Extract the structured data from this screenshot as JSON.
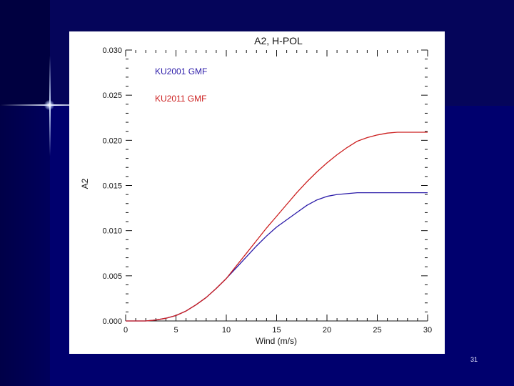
{
  "slide": {
    "number": "31"
  },
  "chart_data": {
    "type": "line",
    "title": "A2, H-POL",
    "xlabel": "Wind (m/s)",
    "ylabel": "A2",
    "xlim": [
      0,
      30
    ],
    "ylim": [
      0,
      0.03
    ],
    "x_ticks": [
      0,
      5,
      10,
      15,
      20,
      25,
      30
    ],
    "x_tick_labels": [
      "0",
      "5",
      "10",
      "15",
      "20",
      "25",
      "30"
    ],
    "y_ticks": [
      0,
      0.005,
      0.01,
      0.015,
      0.02,
      0.025,
      0.03
    ],
    "y_tick_labels": [
      "0.000",
      "0.005",
      "0.010",
      "0.015",
      "0.020",
      "0.025",
      "0.030"
    ],
    "grid": false,
    "legend_position": "top-left",
    "series": [
      {
        "name": "KU2001 GMF",
        "color": "#2a1aa8",
        "x": [
          0,
          2,
          3,
          4,
          5,
          6,
          7,
          8,
          9,
          10,
          11,
          12,
          13,
          14,
          15,
          16,
          17,
          18,
          19,
          20,
          21,
          22,
          23,
          24,
          25,
          26,
          27,
          28,
          29,
          30
        ],
        "y": [
          0,
          0,
          0.0001,
          0.0003,
          0.0006,
          0.0011,
          0.0018,
          0.0026,
          0.0036,
          0.0047,
          0.0059,
          0.0071,
          0.0083,
          0.0094,
          0.0104,
          0.0112,
          0.012,
          0.0128,
          0.0134,
          0.0138,
          0.014,
          0.0141,
          0.0142,
          0.0142,
          0.0142,
          0.0142,
          0.0142,
          0.0142,
          0.0142,
          0.0142
        ]
      },
      {
        "name": "KU2011 GMF",
        "color": "#cc1f1f",
        "x": [
          0,
          2,
          3,
          4,
          5,
          6,
          7,
          8,
          9,
          10,
          11,
          12,
          13,
          14,
          15,
          16,
          17,
          18,
          19,
          20,
          21,
          22,
          23,
          24,
          25,
          26,
          27,
          28,
          29,
          30
        ],
        "y": [
          0,
          0,
          0.0001,
          0.0003,
          0.0006,
          0.0011,
          0.0018,
          0.0026,
          0.0036,
          0.0047,
          0.0061,
          0.0075,
          0.0089,
          0.0103,
          0.0116,
          0.0129,
          0.0142,
          0.0154,
          0.0165,
          0.0175,
          0.0184,
          0.0192,
          0.0199,
          0.0203,
          0.0206,
          0.0208,
          0.0209,
          0.0209,
          0.0209,
          0.0209
        ]
      }
    ]
  }
}
